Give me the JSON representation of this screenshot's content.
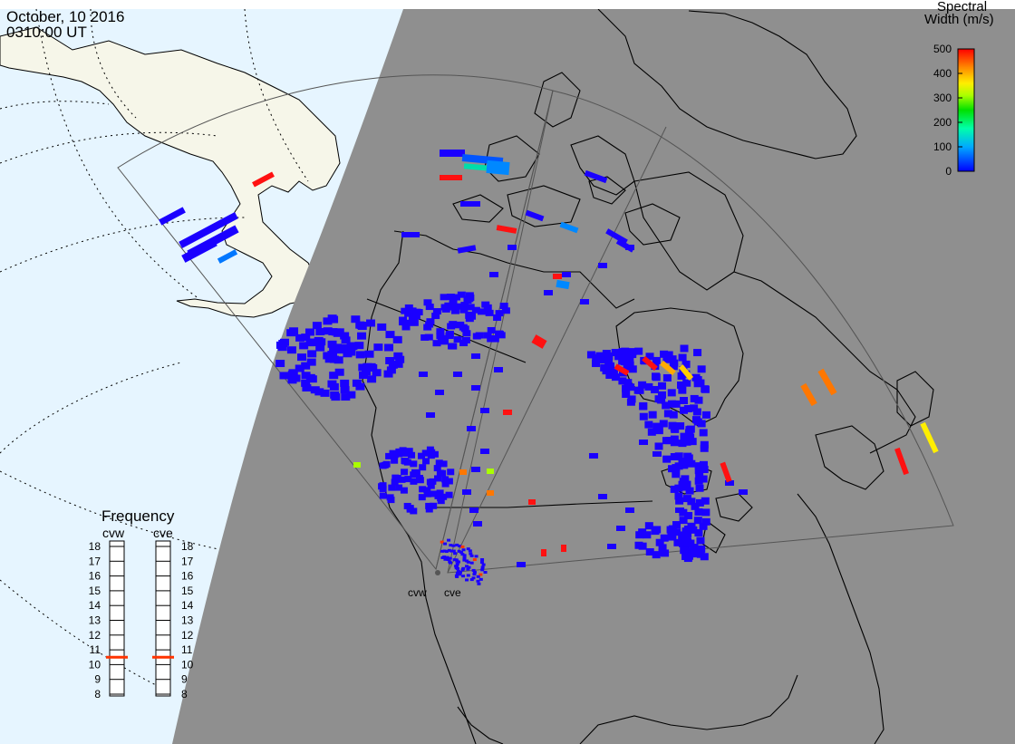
{
  "header": {
    "date": "October, 10 2016",
    "time": "0310:00 UT"
  },
  "colorbar": {
    "title_line1": "Spectral",
    "title_line2": "Width (m/s)",
    "ticks": [
      "500",
      "400",
      "300",
      "200",
      "100",
      "0"
    ],
    "min": 0,
    "max": 500
  },
  "frequency_panel": {
    "title": "Frequency",
    "radar_a": {
      "name": "cvw",
      "selected_mhz": 10.5
    },
    "radar_b": {
      "name": "cve",
      "selected_mhz": 10.5
    },
    "ticks": [
      "18",
      "17",
      "16",
      "15",
      "14",
      "13",
      "12",
      "11",
      "10",
      "9",
      "8"
    ],
    "indicator_color": "#ff3300"
  },
  "radars": [
    {
      "name": "cvw"
    },
    {
      "name": "cve"
    }
  ],
  "colors": {
    "night_side": "#8f8f8f",
    "ocean_day": "#e6f5ff",
    "land_day": "#f6f6e9",
    "coastline": "#000000",
    "fov_outline": "#555555",
    "backscatter_low": "#1a00ff"
  }
}
